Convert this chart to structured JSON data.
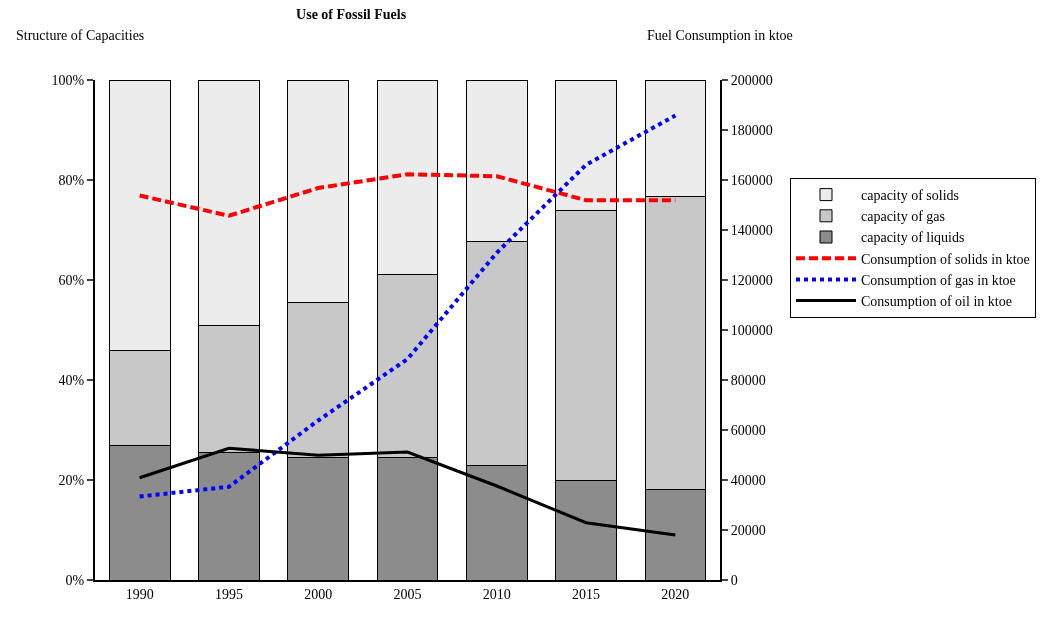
{
  "chart_data": {
    "type": "bar",
    "title": "Use of Fossil Fuels",
    "ylabel": "Structure of Capacities",
    "y2label": "Fuel Consumption in ktoe",
    "categories": [
      "1990",
      "1995",
      "2000",
      "2005",
      "2010",
      "2015",
      "2020"
    ],
    "stacked": true,
    "series": [
      {
        "name": "capacity of liquids",
        "color": "#8c8c8c",
        "values": [
          27,
          25.6,
          24.5,
          24.5,
          23,
          20,
          18.2
        ]
      },
      {
        "name": "capacity of gas",
        "color": "#c8c8c8",
        "values": [
          19,
          25.3,
          31,
          36.6,
          44.8,
          54,
          58.5
        ]
      },
      {
        "name": "capacity of solids",
        "color": "#ececec",
        "values": [
          54,
          49.1,
          44.5,
          38.9,
          32.2,
          26,
          23.3
        ]
      },
      {
        "name": "Consumption of solids in ktoe",
        "type": "line",
        "axis": "y2",
        "line_style": "dashed",
        "color": "#ff0000",
        "values": [
          153800,
          145700,
          156800,
          162300,
          161500,
          151900,
          151900
        ]
      },
      {
        "name": "Consumption of gas in ktoe",
        "type": "line",
        "axis": "y2",
        "line_style": "dotted",
        "color": "#0000ff",
        "values": [
          33400,
          37300,
          63800,
          88400,
          130900,
          166100,
          185800
        ]
      },
      {
        "name": "Consumption of oil in ktoe",
        "type": "line",
        "axis": "y2",
        "line_style": "solid",
        "color": "#000000",
        "values": [
          40900,
          52700,
          49900,
          51200,
          37600,
          22900,
          18000
        ]
      }
    ],
    "ylim": [
      0,
      100
    ],
    "yticks": [
      {
        "value": 0,
        "label": "0%"
      },
      {
        "value": 20,
        "label": "20%"
      },
      {
        "value": 40,
        "label": "40%"
      },
      {
        "value": 60,
        "label": "60%"
      },
      {
        "value": 80,
        "label": "80%"
      },
      {
        "value": 100,
        "label": "100%"
      }
    ],
    "y2lim": [
      0,
      200000
    ],
    "y2ticks": [
      0,
      20000,
      40000,
      60000,
      80000,
      100000,
      120000,
      140000,
      160000,
      180000,
      200000
    ],
    "legend": "right",
    "marker": "none"
  }
}
